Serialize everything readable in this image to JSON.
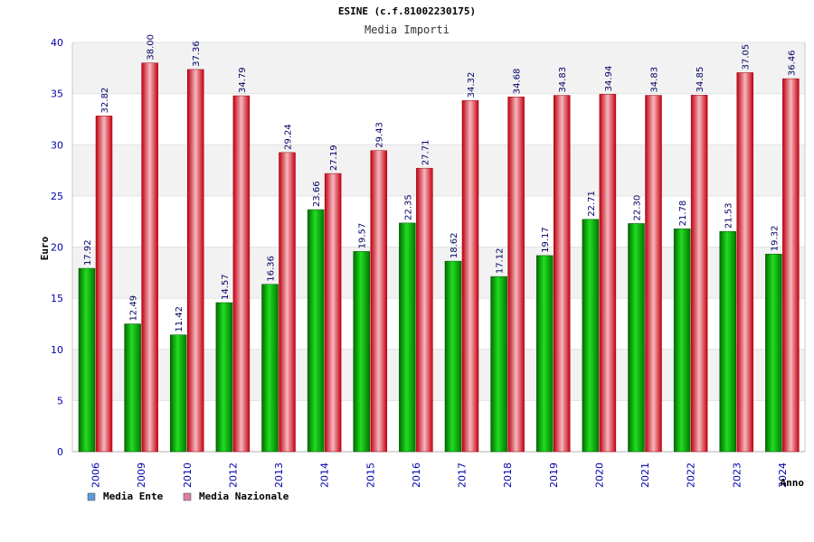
{
  "chart_data": {
    "type": "bar",
    "title": "ESINE (c.f.81002230175)",
    "subtitle": "Media Importi",
    "xlabel": "Anno",
    "ylabel": "Euro",
    "ylim": [
      0,
      40
    ],
    "yticks": [
      0,
      5,
      10,
      15,
      20,
      25,
      30,
      35,
      40
    ],
    "grid": true,
    "legend_position": "bottom-left",
    "categories": [
      "2006",
      "2009",
      "2010",
      "2012",
      "2013",
      "2014",
      "2015",
      "2016",
      "2017",
      "2018",
      "2019",
      "2020",
      "2021",
      "2022",
      "2023",
      "2024"
    ],
    "series": [
      {
        "name": "Media Ente",
        "color": "#00b000",
        "legend_color": "#5b9bd5",
        "values": [
          17.92,
          12.49,
          11.42,
          14.57,
          16.36,
          23.66,
          19.57,
          22.35,
          18.62,
          17.12,
          19.17,
          22.71,
          22.3,
          21.78,
          21.53,
          19.32
        ],
        "labels": [
          "17.92",
          "12.49",
          "11.42",
          "14.57",
          "16.36",
          "23.66",
          "19.57",
          "22.35",
          "18.62",
          "17.12",
          "19.17",
          "22.71",
          "22.30",
          "21.78",
          "21.53",
          "19.32"
        ]
      },
      {
        "name": "Media Nazionale",
        "color": "#e8101a",
        "legend_color": "#d97fa8",
        "values": [
          32.82,
          38.0,
          37.36,
          34.79,
          29.24,
          27.19,
          29.43,
          27.71,
          34.32,
          34.68,
          34.83,
          34.94,
          34.83,
          34.85,
          37.05,
          36.46
        ],
        "labels": [
          "32.82",
          "38.00",
          "37.36",
          "34.79",
          "29.24",
          "27.19",
          "29.43",
          "27.71",
          "34.32",
          "34.68",
          "34.83",
          "34.94",
          "34.83",
          "34.85",
          "37.05",
          "36.46"
        ]
      }
    ]
  }
}
